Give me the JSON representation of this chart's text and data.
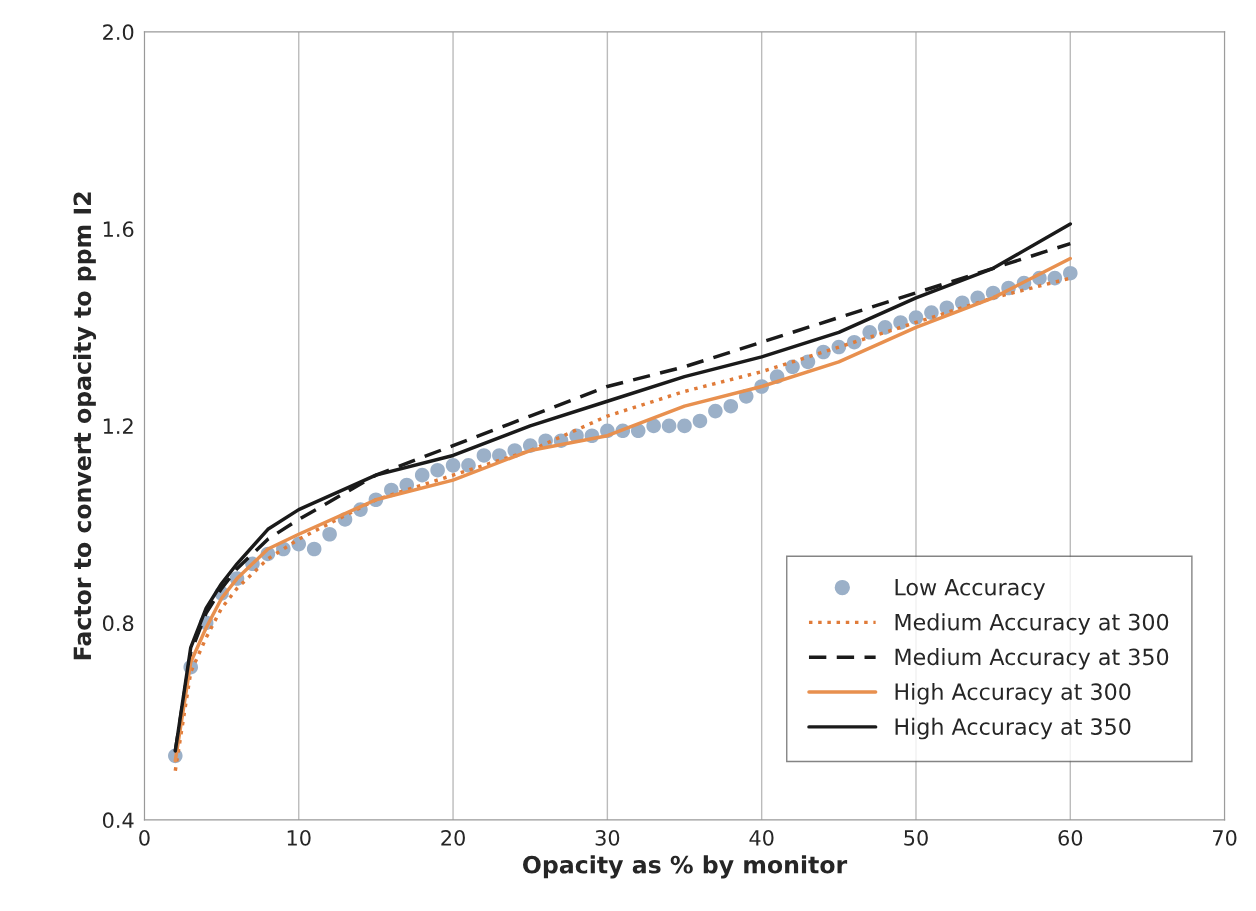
{
  "chart_data": {
    "type": "line",
    "xlabel": "Opacity as % by monitor",
    "ylabel": "Factor to convert opacity to ppm I2",
    "xlim": [
      0,
      70
    ],
    "xticks": [
      0,
      10,
      20,
      30,
      40,
      50,
      60,
      70
    ],
    "ylim": [
      0.4,
      2.0
    ],
    "yticks": [
      {
        "value": 0.4,
        "label": "0.4"
      },
      {
        "value": 0.8,
        "label": "0.8"
      },
      {
        "value": 1.2,
        "label": "1.2"
      },
      {
        "value": 1.6,
        "label": "1.6"
      },
      {
        "value": 2.0,
        "label": "2.0"
      }
    ],
    "grid": "x",
    "legend": "bottom right",
    "series": [
      {
        "name": "Low Accuracy",
        "type": "scatter",
        "marker": "circle",
        "color": "#9bb0c8",
        "x": [
          2,
          3,
          4,
          5,
          6,
          7,
          8,
          9,
          10,
          11,
          12,
          13,
          14,
          15,
          16,
          17,
          18,
          19,
          20,
          21,
          22,
          23,
          24,
          25,
          26,
          27,
          28,
          29,
          30,
          31,
          32,
          33,
          34,
          35,
          36,
          37,
          38,
          39,
          40,
          41,
          42,
          43,
          44,
          45,
          46,
          47,
          48,
          49,
          50,
          51,
          52,
          53,
          54,
          55,
          56,
          57,
          58,
          59,
          60
        ],
        "values": [
          0.53,
          0.71,
          0.8,
          0.86,
          0.89,
          0.92,
          0.94,
          0.95,
          0.96,
          0.95,
          0.98,
          1.01,
          1.03,
          1.05,
          1.07,
          1.08,
          1.1,
          1.11,
          1.12,
          1.12,
          1.14,
          1.14,
          1.15,
          1.16,
          1.17,
          1.17,
          1.18,
          1.18,
          1.19,
          1.19,
          1.19,
          1.2,
          1.2,
          1.2,
          1.21,
          1.23,
          1.24,
          1.26,
          1.28,
          1.3,
          1.32,
          1.33,
          1.35,
          1.36,
          1.37,
          1.39,
          1.4,
          1.41,
          1.42,
          1.43,
          1.44,
          1.45,
          1.46,
          1.47,
          1.48,
          1.49,
          1.5,
          1.5,
          1.51
        ]
      },
      {
        "name": "Medium Accuracy at 300",
        "line_style": "dotted",
        "color": "#e07b39",
        "x": [
          2,
          3,
          4,
          5,
          6,
          8,
          10,
          15,
          20,
          25,
          30,
          35,
          40,
          45,
          50,
          55,
          60
        ],
        "values": [
          0.5,
          0.7,
          0.77,
          0.83,
          0.87,
          0.93,
          0.97,
          1.05,
          1.1,
          1.15,
          1.22,
          1.27,
          1.31,
          1.36,
          1.41,
          1.46,
          1.5
        ]
      },
      {
        "name": "Medium Accuracy at 350",
        "line_style": "dashed",
        "color": "#1a1a1a",
        "x": [
          2,
          3,
          4,
          5,
          6,
          8,
          10,
          15,
          20,
          25,
          30,
          35,
          40,
          45,
          50,
          55,
          60
        ],
        "values": [
          0.54,
          0.74,
          0.82,
          0.87,
          0.91,
          0.97,
          1.01,
          1.1,
          1.16,
          1.22,
          1.28,
          1.32,
          1.37,
          1.42,
          1.47,
          1.52,
          1.57
        ]
      },
      {
        "name": "High Accuracy at 300",
        "line_style": "solid",
        "color": "#e8904f",
        "x": [
          2,
          3,
          4,
          5,
          6,
          8,
          10,
          15,
          20,
          25,
          30,
          35,
          40,
          45,
          50,
          55,
          60
        ],
        "values": [
          0.52,
          0.72,
          0.79,
          0.85,
          0.89,
          0.95,
          0.98,
          1.05,
          1.09,
          1.15,
          1.18,
          1.24,
          1.28,
          1.33,
          1.4,
          1.46,
          1.54
        ]
      },
      {
        "name": "High Accuracy at 350",
        "line_style": "solid",
        "color": "#1a1a1a",
        "x": [
          2,
          3,
          4,
          5,
          6,
          8,
          10,
          15,
          20,
          25,
          30,
          35,
          40,
          45,
          50,
          55,
          60
        ],
        "values": [
          0.54,
          0.75,
          0.83,
          0.88,
          0.92,
          0.99,
          1.03,
          1.1,
          1.14,
          1.2,
          1.25,
          1.3,
          1.34,
          1.39,
          1.46,
          1.52,
          1.61
        ]
      }
    ]
  }
}
